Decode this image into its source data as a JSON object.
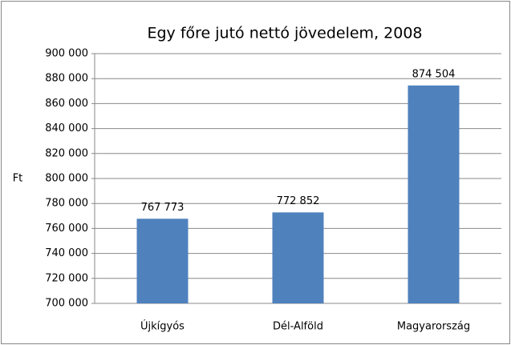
{
  "chart_data": {
    "type": "bar",
    "title": "Egy főre jutó nettó jövedelem, 2008",
    "y_label": "Ft",
    "categories": [
      "Újkígyós",
      "Dél-Alföld",
      "Magyarország"
    ],
    "values": [
      767773,
      772852,
      874504
    ],
    "value_labels": [
      "767 773",
      "772 852",
      "874 504"
    ],
    "color": "#4f81bd",
    "ylim": [
      700000,
      900000
    ],
    "yticks": [
      {
        "value": 700000,
        "label": "700 000"
      },
      {
        "value": 720000,
        "label": "720 000"
      },
      {
        "value": 740000,
        "label": "740 000"
      },
      {
        "value": 760000,
        "label": "760 000"
      },
      {
        "value": 780000,
        "label": "780 000"
      },
      {
        "value": 800000,
        "label": "800 000"
      },
      {
        "value": 820000,
        "label": "820 000"
      },
      {
        "value": 840000,
        "label": "840 000"
      },
      {
        "value": 860000,
        "label": "860 000"
      },
      {
        "value": 880000,
        "label": "880 000"
      },
      {
        "value": 900000,
        "label": "900 000"
      }
    ],
    "grid": true
  }
}
